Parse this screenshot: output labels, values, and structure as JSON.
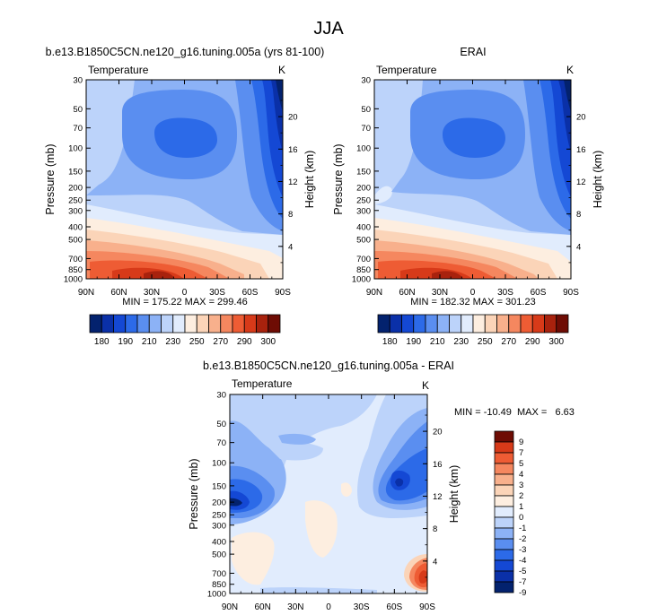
{
  "figure": {
    "title": "JJA",
    "colors": {
      "temp_scale": [
        "#03226e",
        "#0a30a8",
        "#1448d4",
        "#2c6ae8",
        "#5a8ef0",
        "#8cb2f6",
        "#bcd3fa",
        "#e1ecfd",
        "#fdeee0",
        "#fbd4b8",
        "#f8b08c",
        "#f5875f",
        "#ee5c34",
        "#d73a19",
        "#a8220d",
        "#6e0c04"
      ],
      "diff_scale": [
        "#03226e",
        "#0a30a8",
        "#1448d4",
        "#2c6ae8",
        "#5a8ef0",
        "#8cb2f6",
        "#bcd3fa",
        "#e1ecfd",
        "#fdeee0",
        "#fbd4b8",
        "#f8b08c",
        "#f5875f",
        "#ee5c34",
        "#d73a19",
        "#6e0c04"
      ]
    }
  },
  "chart_data": [
    {
      "type": "contour",
      "title": "b.e13.B1850C5CN.ne120_g16.tuning.005a (yrs 81-100)",
      "left_label": "Temperature",
      "right_label": "K",
      "xlabel": "",
      "ylabel": "Pressure (mb)",
      "ylabel_right": "Height (km)",
      "x_ticks": [
        "90N",
        "60N",
        "30N",
        "0",
        "30S",
        "60S",
        "90S"
      ],
      "y_ticks": [
        "30",
        "50",
        "70",
        "100",
        "150",
        "200",
        "250",
        "300",
        "400",
        "500",
        "700",
        "850",
        "1000"
      ],
      "height_ticks": [
        "20",
        "16",
        "12",
        "8",
        "4"
      ],
      "stats": "MIN = 175.22  MAX = 299.46",
      "colorbar_labels": [
        "180",
        "190",
        "210",
        "230",
        "250",
        "270",
        "290",
        "300"
      ],
      "min": 175.22,
      "max": 299.46
    },
    {
      "type": "contour",
      "title": "ERAI",
      "left_label": "Temperature",
      "right_label": "K",
      "xlabel": "",
      "ylabel": "Pressure (mb)",
      "ylabel_right": "Height (km)",
      "x_ticks": [
        "90N",
        "60N",
        "30N",
        "0",
        "30S",
        "60S",
        "90S"
      ],
      "y_ticks": [
        "30",
        "50",
        "70",
        "100",
        "150",
        "200",
        "250",
        "300",
        "400",
        "500",
        "700",
        "850",
        "1000"
      ],
      "height_ticks": [
        "20",
        "16",
        "12",
        "8",
        "4"
      ],
      "stats": "MIN = 182.32  MAX = 301.23",
      "colorbar_labels": [
        "180",
        "190",
        "210",
        "230",
        "250",
        "270",
        "290",
        "300"
      ],
      "min": 182.32,
      "max": 301.23
    },
    {
      "type": "contour",
      "title": "b.e13.B1850C5CN.ne120_g16.tuning.005a - ERAI",
      "left_label": "Temperature",
      "right_label": "K",
      "xlabel": "",
      "ylabel": "Pressure (mb)",
      "ylabel_right": "Height (km)",
      "x_ticks": [
        "90N",
        "60N",
        "30N",
        "0",
        "30S",
        "60S",
        "90S"
      ],
      "y_ticks": [
        "30",
        "50",
        "70",
        "100",
        "150",
        "200",
        "250",
        "300",
        "400",
        "500",
        "700",
        "850",
        "1000"
      ],
      "height_ticks": [
        "20",
        "16",
        "12",
        "8",
        "4"
      ],
      "stats": "MIN = -10.49  MAX =   6.63",
      "colorbar_labels": [
        "9",
        "7",
        "5",
        "4",
        "3",
        "2",
        "1",
        "0",
        "-1",
        "-2",
        "-3",
        "-4",
        "-5",
        "-7",
        "-9"
      ],
      "min": -10.49,
      "max": 6.63
    }
  ]
}
